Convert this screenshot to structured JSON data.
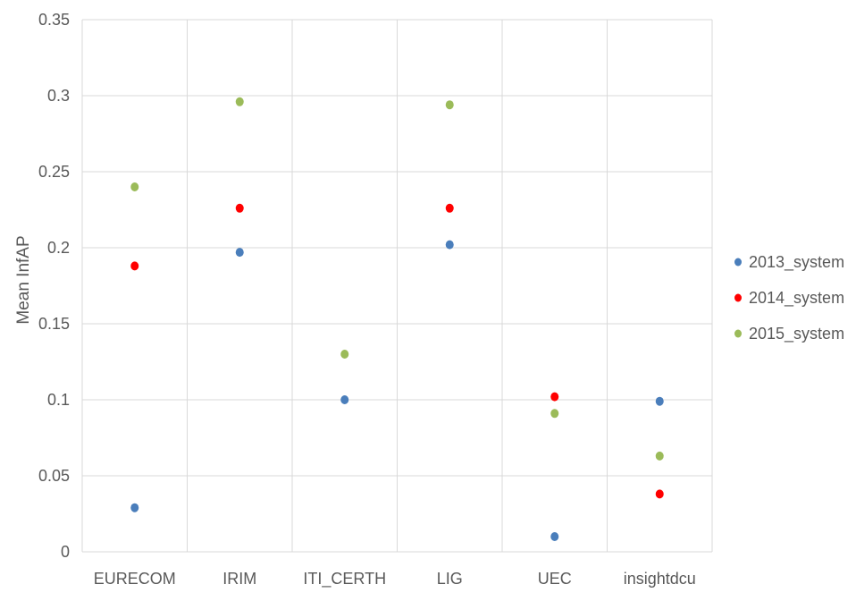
{
  "chart_data": {
    "type": "scatter",
    "title": "",
    "xlabel": "",
    "ylabel": "Mean InfAP",
    "categories": [
      "EURECOM",
      "IRIM",
      "ITI_CERTH",
      "LIG",
      "UEC",
      "insightdcu"
    ],
    "ylim": [
      0,
      0.35
    ],
    "yticks": [
      "0",
      "0.05",
      "0.1",
      "0.15",
      "0.2",
      "0.25",
      "0.3",
      "0.35"
    ],
    "grid": true,
    "legend_position": "right",
    "series": [
      {
        "name": "2013_system",
        "color": "#4a7ebb",
        "values": [
          0.029,
          0.197,
          0.1,
          0.202,
          0.01,
          0.099
        ]
      },
      {
        "name": "2014_system",
        "color": "#ff0000",
        "values": [
          0.188,
          0.226,
          null,
          0.226,
          0.102,
          0.038
        ]
      },
      {
        "name": "2015_system",
        "color": "#9bbb59",
        "values": [
          0.24,
          0.296,
          0.13,
          0.294,
          0.091,
          0.063
        ]
      }
    ]
  }
}
